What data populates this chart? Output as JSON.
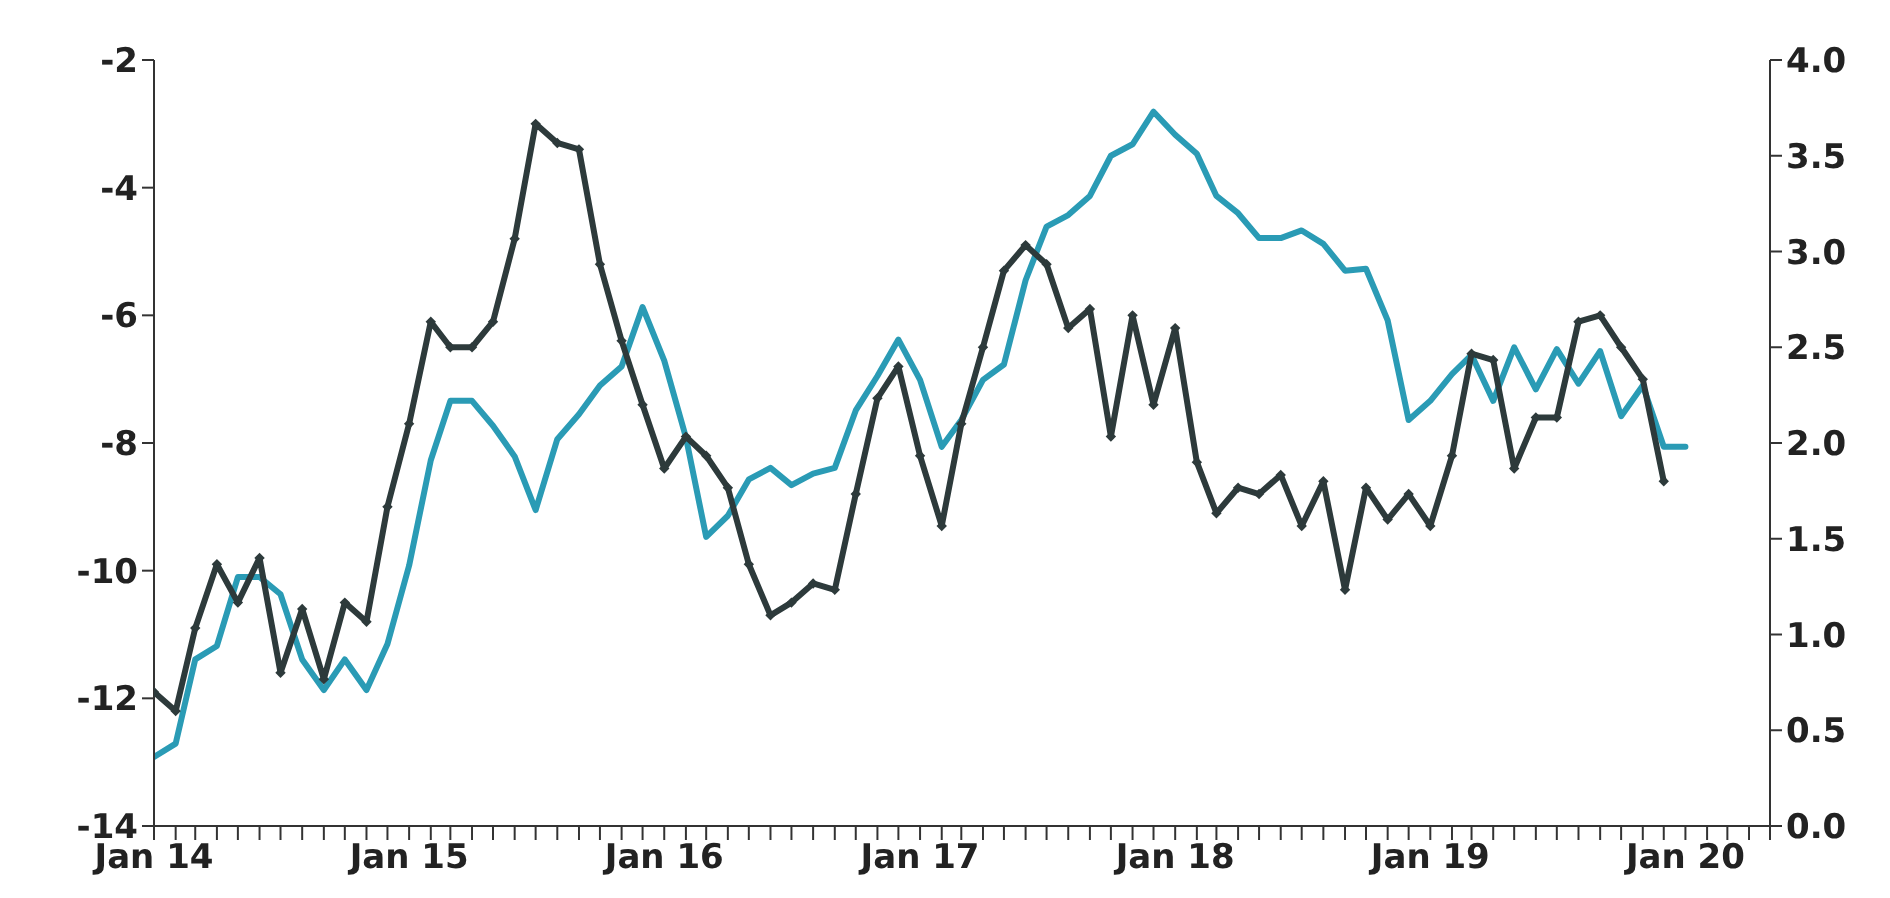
{
  "chart_data": {
    "type": "line",
    "x": [
      "2014-01",
      "2014-02",
      "2014-03",
      "2014-04",
      "2014-05",
      "2014-06",
      "2014-07",
      "2014-08",
      "2014-09",
      "2014-10",
      "2014-11",
      "2014-12",
      "2015-01",
      "2015-02",
      "2015-03",
      "2015-04",
      "2015-05",
      "2015-06",
      "2015-07",
      "2015-08",
      "2015-09",
      "2015-10",
      "2015-11",
      "2015-12",
      "2016-01",
      "2016-02",
      "2016-03",
      "2016-04",
      "2016-05",
      "2016-06",
      "2016-07",
      "2016-08",
      "2016-09",
      "2016-10",
      "2016-11",
      "2016-12",
      "2017-01",
      "2017-02",
      "2017-03",
      "2017-04",
      "2017-05",
      "2017-06",
      "2017-07",
      "2017-08",
      "2017-09",
      "2017-10",
      "2017-11",
      "2017-12",
      "2018-01",
      "2018-02",
      "2018-03",
      "2018-04",
      "2018-05",
      "2018-06",
      "2018-07",
      "2018-08",
      "2018-09",
      "2018-10",
      "2018-11",
      "2018-12",
      "2019-01",
      "2019-02",
      "2019-03",
      "2019-04",
      "2019-05",
      "2019-06",
      "2019-07",
      "2019-08",
      "2019-09",
      "2019-10",
      "2019-11",
      "2019-12",
      "2020-01"
    ],
    "series": [
      {
        "color": "#2a9bb5",
        "axis": "y2",
        "marker": "none",
        "values": [
          0.36,
          0.43,
          0.87,
          0.94,
          1.3,
          1.3,
          1.21,
          0.87,
          0.71,
          0.87,
          0.71,
          0.95,
          1.36,
          1.91,
          2.22,
          2.22,
          2.09,
          1.93,
          1.65,
          2.02,
          2.15,
          2.3,
          2.4,
          2.71,
          2.43,
          2.03,
          1.51,
          1.62,
          1.81,
          1.87,
          1.78,
          1.84,
          1.87,
          2.17,
          2.35,
          2.54,
          2.33,
          1.98,
          2.12,
          2.33,
          2.41,
          2.85,
          3.13,
          3.19,
          3.29,
          3.5,
          3.56,
          3.73,
          3.61,
          3.51,
          3.29,
          3.2,
          3.07,
          3.07,
          3.11,
          3.04,
          2.9,
          2.91,
          2.64,
          2.12,
          2.22,
          2.36,
          2.46,
          2.22,
          2.5,
          2.28,
          2.49,
          2.31,
          2.48,
          2.14,
          2.3,
          1.98,
          1.98
        ]
      },
      {
        "color": "#2d3a3b",
        "axis": "y",
        "marker": "diamond",
        "values": [
          -11.9,
          -12.2,
          -10.9,
          -9.9,
          -10.5,
          -9.8,
          -11.6,
          -10.6,
          -11.7,
          -10.5,
          -10.8,
          -9.0,
          -7.7,
          -6.1,
          -6.5,
          -6.5,
          -6.1,
          -4.8,
          -3.0,
          -3.3,
          -3.4,
          -5.2,
          -6.4,
          -7.4,
          -8.4,
          -7.9,
          -8.2,
          -8.7,
          -9.9,
          -10.7,
          -10.5,
          -10.2,
          -10.3,
          -8.8,
          -7.3,
          -6.8,
          -8.2,
          -9.3,
          -7.7,
          -6.5,
          -5.3,
          -4.9,
          -5.2,
          -6.2,
          -5.9,
          -7.9,
          -6.0,
          -7.4,
          -6.2,
          -8.3,
          -9.1,
          -8.7,
          -8.8,
          -8.5,
          -9.3,
          -8.6,
          -10.3,
          -8.7,
          -9.2,
          -8.8,
          -9.3,
          -8.2,
          -6.6,
          -6.7,
          -8.4,
          -7.6,
          -7.6,
          -6.1,
          -6.0,
          -6.5,
          -7.0,
          -8.6,
          null
        ]
      }
    ],
    "xlim": [
      "2014-01",
      "2020-05"
    ],
    "xticks": [
      {
        "value": "2014-01",
        "label": "Jan 14"
      },
      {
        "value": "2014-02",
        "label": null
      },
      {
        "value": "2014-03",
        "label": null
      },
      {
        "value": "2014-04",
        "label": null
      },
      {
        "value": "2014-05",
        "label": null
      },
      {
        "value": "2014-06",
        "label": null
      },
      {
        "value": "2014-07",
        "label": null
      },
      {
        "value": "2014-08",
        "label": null
      },
      {
        "value": "2014-09",
        "label": null
      },
      {
        "value": "2014-10",
        "label": null
      },
      {
        "value": "2014-11",
        "label": null
      },
      {
        "value": "2014-12",
        "label": null
      },
      {
        "value": "2015-01",
        "label": "Jan 15"
      },
      {
        "value": "2015-02",
        "label": null
      },
      {
        "value": "2015-03",
        "label": null
      },
      {
        "value": "2015-04",
        "label": null
      },
      {
        "value": "2015-05",
        "label": null
      },
      {
        "value": "2015-06",
        "label": null
      },
      {
        "value": "2015-07",
        "label": null
      },
      {
        "value": "2015-08",
        "label": null
      },
      {
        "value": "2015-09",
        "label": null
      },
      {
        "value": "2015-10",
        "label": null
      },
      {
        "value": "2015-11",
        "label": null
      },
      {
        "value": "2015-12",
        "label": null
      },
      {
        "value": "2016-01",
        "label": "Jan 16"
      },
      {
        "value": "2016-02",
        "label": null
      },
      {
        "value": "2016-03",
        "label": null
      },
      {
        "value": "2016-04",
        "label": null
      },
      {
        "value": "2016-05",
        "label": null
      },
      {
        "value": "2016-06",
        "label": null
      },
      {
        "value": "2016-07",
        "label": null
      },
      {
        "value": "2016-08",
        "label": null
      },
      {
        "value": "2016-09",
        "label": null
      },
      {
        "value": "2016-10",
        "label": null
      },
      {
        "value": "2016-11",
        "label": null
      },
      {
        "value": "2016-12",
        "label": null
      },
      {
        "value": "2017-01",
        "label": "Jan 17"
      },
      {
        "value": "2017-02",
        "label": null
      },
      {
        "value": "2017-03",
        "label": null
      },
      {
        "value": "2017-04",
        "label": null
      },
      {
        "value": "2017-05",
        "label": null
      },
      {
        "value": "2017-06",
        "label": null
      },
      {
        "value": "2017-07",
        "label": null
      },
      {
        "value": "2017-08",
        "label": null
      },
      {
        "value": "2017-09",
        "label": null
      },
      {
        "value": "2017-10",
        "label": null
      },
      {
        "value": "2017-11",
        "label": null
      },
      {
        "value": "2017-12",
        "label": null
      },
      {
        "value": "2018-01",
        "label": "Jan 18"
      },
      {
        "value": "2018-02",
        "label": null
      },
      {
        "value": "2018-03",
        "label": null
      },
      {
        "value": "2018-04",
        "label": null
      },
      {
        "value": "2018-05",
        "label": null
      },
      {
        "value": "2018-06",
        "label": null
      },
      {
        "value": "2018-07",
        "label": null
      },
      {
        "value": "2018-08",
        "label": null
      },
      {
        "value": "2018-09",
        "label": null
      },
      {
        "value": "2018-10",
        "label": null
      },
      {
        "value": "2018-11",
        "label": null
      },
      {
        "value": "2018-12",
        "label": null
      },
      {
        "value": "2019-01",
        "label": "Jan 19"
      },
      {
        "value": "2019-02",
        "label": null
      },
      {
        "value": "2019-03",
        "label": null
      },
      {
        "value": "2019-04",
        "label": null
      },
      {
        "value": "2019-05",
        "label": null
      },
      {
        "value": "2019-06",
        "label": null
      },
      {
        "value": "2019-07",
        "label": null
      },
      {
        "value": "2019-08",
        "label": null
      },
      {
        "value": "2019-09",
        "label": null
      },
      {
        "value": "2019-10",
        "label": null
      },
      {
        "value": "2019-11",
        "label": null
      },
      {
        "value": "2019-12",
        "label": null
      },
      {
        "value": "2020-01",
        "label": "Jan 20"
      },
      {
        "value": "2020-02",
        "label": null
      },
      {
        "value": "2020-03",
        "label": null
      },
      {
        "value": "2020-04",
        "label": null
      },
      {
        "value": "2020-05",
        "label": null
      }
    ],
    "ylim": [
      -14,
      -2
    ],
    "yticks": [
      -14,
      -12,
      -10,
      -8,
      -6,
      -4,
      -2
    ],
    "y2lim": [
      0,
      4
    ],
    "y2ticks": [
      {
        "value": 0,
        "label": "0.0"
      },
      {
        "value": 0.5,
        "label": "0.5"
      },
      {
        "value": 1,
        "label": "1.0"
      },
      {
        "value": 1.5,
        "label": "1.5"
      },
      {
        "value": 2,
        "label": "2.0"
      },
      {
        "value": 2.5,
        "label": "2.5"
      },
      {
        "value": 3,
        "label": "3.0"
      },
      {
        "value": 3.5,
        "label": "3.5"
      },
      {
        "value": 4,
        "label": "4.0"
      }
    ],
    "line_style": "solid"
  }
}
